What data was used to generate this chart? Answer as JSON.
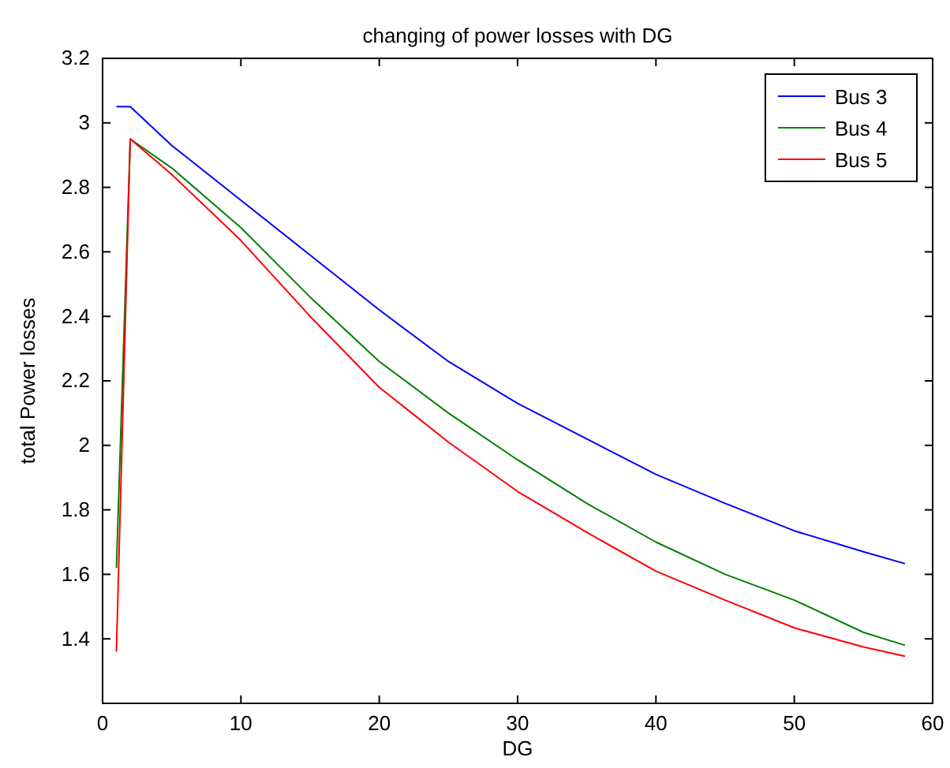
{
  "chart_data": {
    "type": "line",
    "title": "changing of power losses with DG",
    "xlabel": "DG",
    "ylabel": "total Power losses",
    "xlim": [
      0,
      60
    ],
    "xticks": [
      0,
      10,
      20,
      30,
      40,
      50,
      60
    ],
    "ylim": [
      1.2,
      3.2
    ],
    "yticks": [
      1.4,
      1.6,
      1.8,
      2,
      2.2,
      2.4,
      2.6,
      2.8,
      3,
      3.2
    ],
    "grid": false,
    "legend": "top right",
    "marker": "none",
    "line_style": "solid",
    "series": [
      {
        "name": "Bus 3",
        "color": "#0000ff",
        "x": [
          1,
          2,
          5,
          10,
          15,
          20,
          25,
          30,
          35,
          40,
          45,
          50,
          55,
          58
        ],
        "values": [
          3.05,
          3.05,
          2.93,
          2.76,
          2.59,
          2.42,
          2.26,
          2.13,
          2.02,
          1.91,
          1.82,
          1.735,
          1.67,
          1.633
        ]
      },
      {
        "name": "Bus 4",
        "color": "#008000",
        "x": [
          1,
          2,
          5,
          10,
          15,
          20,
          25,
          30,
          35,
          40,
          45,
          50,
          55,
          58
        ],
        "values": [
          1.62,
          2.95,
          2.86,
          2.675,
          2.46,
          2.26,
          2.1,
          1.955,
          1.82,
          1.7,
          1.6,
          1.52,
          1.42,
          1.38
        ]
      },
      {
        "name": "Bus 5",
        "color": "#ff0000",
        "x": [
          1,
          2,
          5,
          10,
          15,
          20,
          25,
          30,
          35,
          40,
          45,
          50,
          55,
          58
        ],
        "values": [
          1.36,
          2.95,
          2.84,
          2.635,
          2.4,
          2.18,
          2.01,
          1.857,
          1.73,
          1.61,
          1.52,
          1.434,
          1.375,
          1.346
        ]
      }
    ]
  }
}
